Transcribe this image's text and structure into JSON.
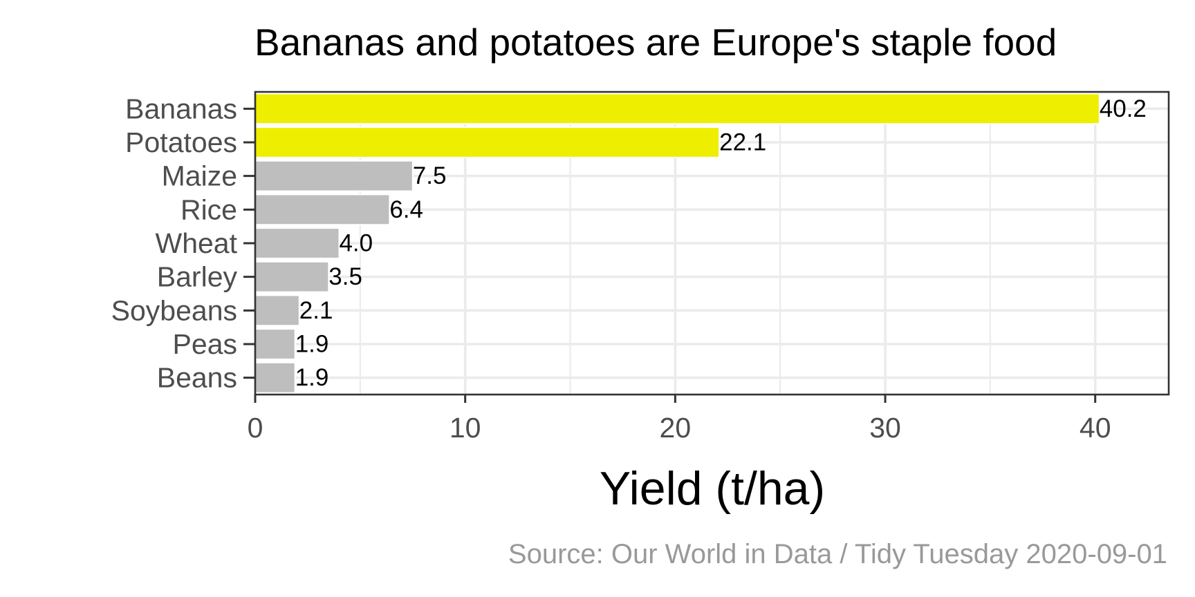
{
  "chart_data": {
    "type": "bar",
    "orientation": "horizontal",
    "title": "Bananas and potatoes are Europe's staple food",
    "xlabel": "Yield (t/ha)",
    "ylabel": "",
    "caption": "Source: Our World in Data / Tidy Tuesday 2020-09-01",
    "categories": [
      "Bananas",
      "Potatoes",
      "Maize",
      "Rice",
      "Wheat",
      "Barley",
      "Soybeans",
      "Peas",
      "Beans"
    ],
    "values": [
      40.2,
      22.1,
      7.5,
      6.4,
      4.0,
      3.5,
      2.1,
      1.9,
      1.9
    ],
    "value_labels": [
      "40.2",
      "22.1",
      "7.5",
      "6.4",
      "4.0",
      "3.5",
      "2.1",
      "1.9",
      "1.9"
    ],
    "highlighted": [
      true,
      true,
      false,
      false,
      false,
      false,
      false,
      false,
      false
    ],
    "xlim": [
      0,
      43.5
    ],
    "xticks": [
      0,
      10,
      20,
      30,
      40
    ],
    "grid": true,
    "legend": "none",
    "colors": {
      "highlight": "#eeee00",
      "default": "#bebebe",
      "grid": "#ebebeb",
      "panel_border": "#333333"
    }
  }
}
